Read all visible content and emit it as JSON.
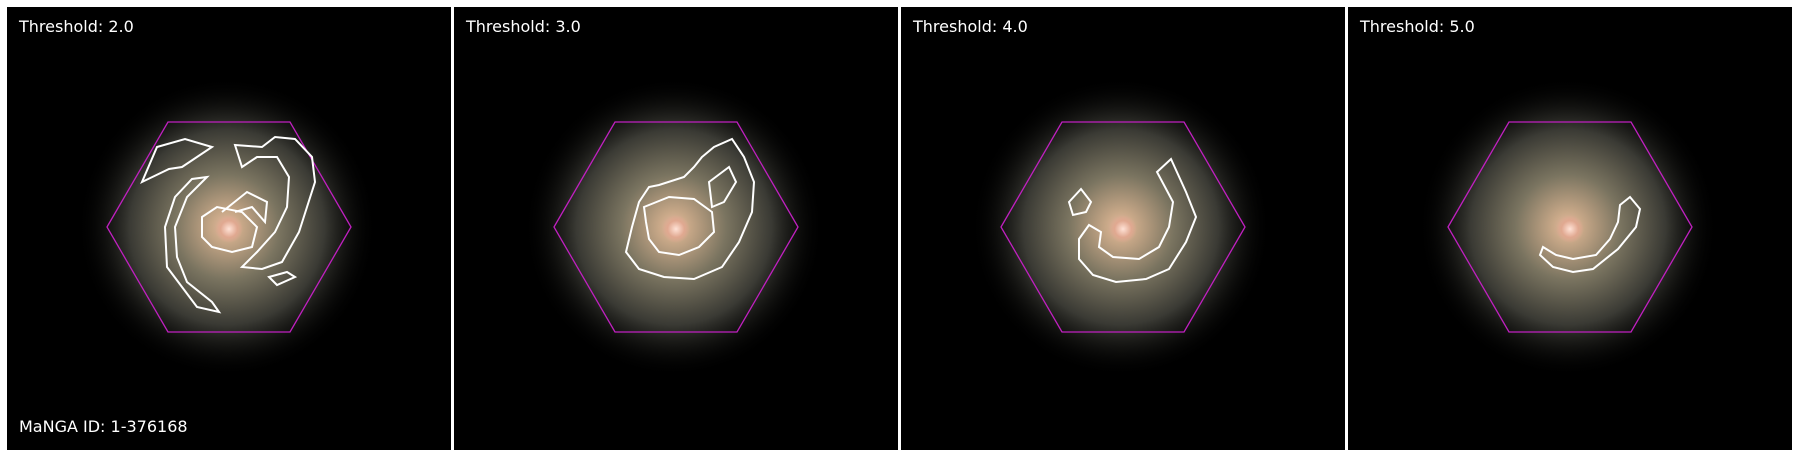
{
  "figure": {
    "manga_id": "MaNGA ID: 1-376168",
    "panels": [
      {
        "threshold_label": "Threshold: 2.0"
      },
      {
        "threshold_label": "Threshold: 3.0"
      },
      {
        "threshold_label": "Threshold: 4.0"
      },
      {
        "threshold_label": "Threshold: 5.0"
      }
    ]
  },
  "colors": {
    "hexagon": "#c020c0",
    "contour": "#ffffff",
    "background": "#000000"
  }
}
